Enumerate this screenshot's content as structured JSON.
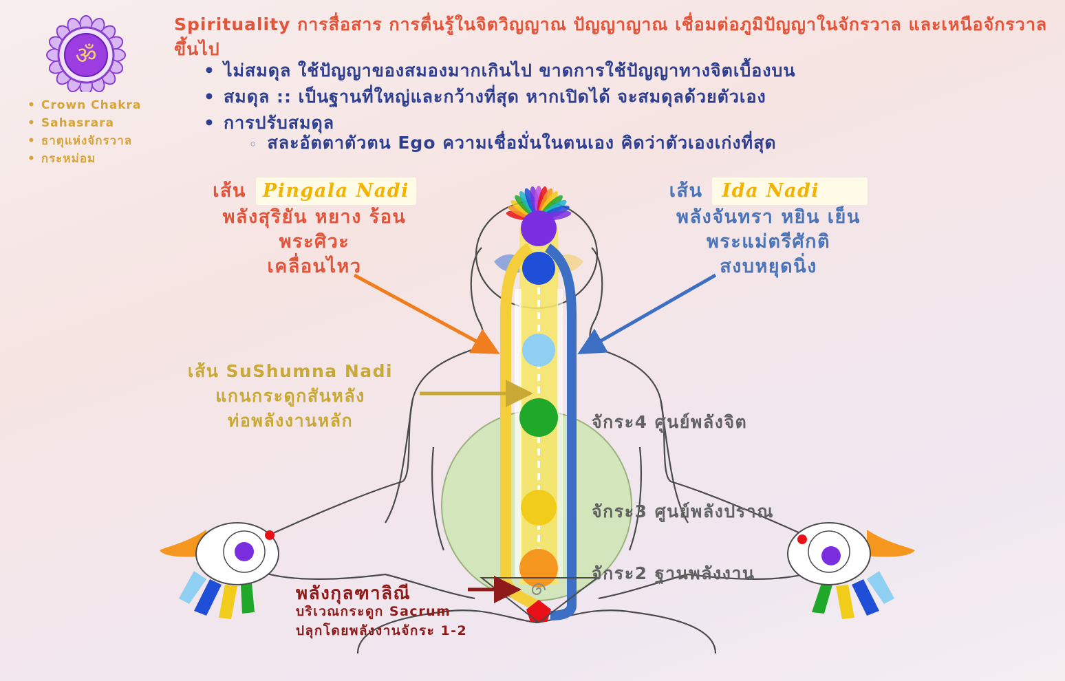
{
  "header": {
    "title": "Spirituality การสื่อสาร การตื่นรู้ในจิตวิญญาณ ปัญญาญาณ เชื่อมต่อภูมิปัญญาในจักรวาล และเหนือจักรวาลขึ้นไป",
    "bullets": [
      "ไม่สมดุล ใช้ปัญญาของสมองมากเกินไป ขาดการใช้ปัญญาทางจิตเบื้องบน",
      "สมดุล :: เป็นฐานที่ใหญ่และกว้างที่สุด หากเปิดได้ จะสมดุลด้วยตัวเอง",
      "การปรับสมดุล"
    ],
    "sub_bullet": "สละอัตตาตัวตน Ego ความเชื่อมั่นในตนเอง คิดว่าตัวเองเก่งที่สุด"
  },
  "chakra_info": {
    "symbol": "ॐ",
    "items": [
      "Crown Chakra",
      "Sahasrara",
      "ธาตุแห่งจักรวาล",
      "กระหม่อม"
    ]
  },
  "pingala": {
    "prefix": "เส้น",
    "name": "Pingala Nadi",
    "lines": [
      "พลังสุริยัน หยาง ร้อน",
      "พระศิวะ",
      "เคลื่อนไหว"
    ]
  },
  "ida": {
    "prefix": "เส้น",
    "name": "Ida Nadi",
    "lines": [
      "พลังจันทรา หยิน เย็น",
      "พระแม่ตรีศักติ",
      "สงบหยุดนิ่ง"
    ]
  },
  "sushumna": {
    "lines": [
      "เส้น SuShumna Nadi",
      "แกนกระดูกสันหลัง",
      "ท่อพลังงานหลัก"
    ]
  },
  "chakra_labels": {
    "c4": "จักระ4 ศูนย์พลังจิต",
    "c3": "จักระ3 ศูนย์พลังปราณ",
    "c2": "จักระ2 ฐานพลังงาน"
  },
  "kundalini": {
    "title": "พลังกุลฑาลิณี",
    "lines": [
      "บริเวณกระดูก Sacrum",
      "ปลุกโดยพลังงานจักระ 1-2"
    ]
  },
  "colors": {
    "red_text": "#e2553a",
    "blue_text": "#2f3f8f",
    "ida_blue": "#4a74b8",
    "gold_text": "#c9a936",
    "chakra_crown": "#7b2ee0",
    "chakra_third_eye": "#1f4fd6",
    "chakra_throat": "#8fd0f2",
    "chakra_heart": "#1fa82a",
    "chakra_solar": "#f2cc1a",
    "chakra_sacral": "#f5961f",
    "chakra_root": "#e80f16"
  }
}
